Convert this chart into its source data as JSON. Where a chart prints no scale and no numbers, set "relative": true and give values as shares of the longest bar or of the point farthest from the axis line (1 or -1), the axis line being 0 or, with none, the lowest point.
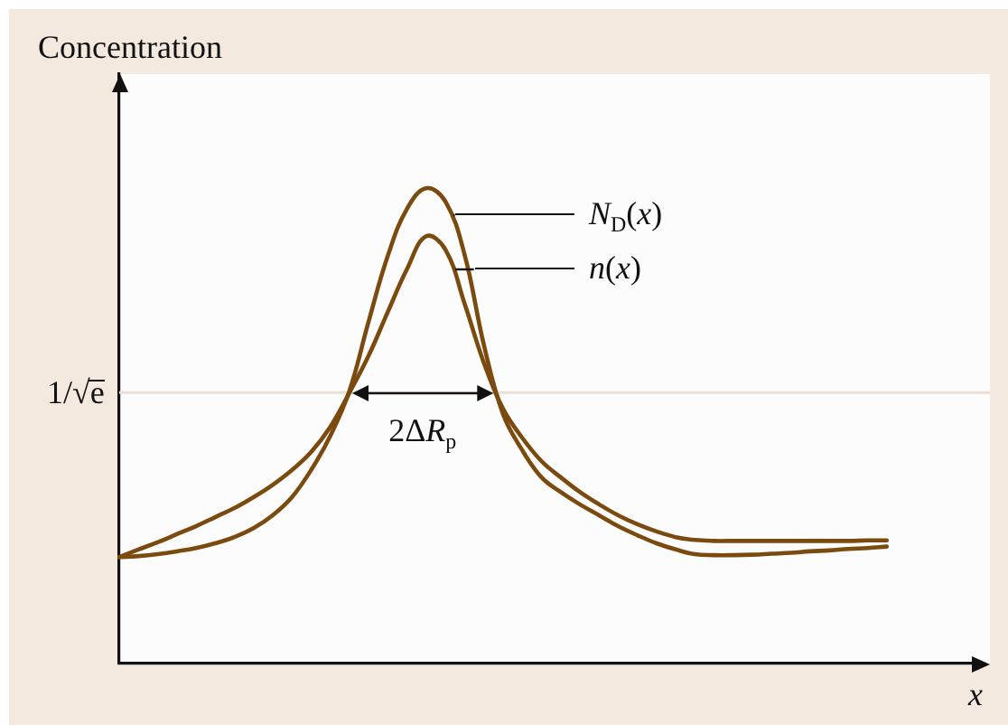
{
  "chart_data": {
    "type": "line",
    "relative": true,
    "ylabel": "Concentration",
    "xlabel": "x",
    "legend": false,
    "marker": "none",
    "line_style": "solid",
    "categories": [
      null,
      null,
      null,
      null,
      null,
      null,
      null,
      null,
      null,
      null,
      null,
      null,
      null,
      null,
      null,
      null,
      null,
      null,
      null,
      null,
      null,
      null,
      null,
      null,
      null,
      null,
      null,
      null,
      null,
      null,
      null,
      null,
      null,
      null,
      null,
      null,
      null,
      null,
      null,
      null,
      null,
      null,
      null,
      null,
      null,
      null
    ],
    "series": [
      {
        "name": "N$_{D}$(x)",
        "color": "#7a4a0e",
        "values": [
          0.224,
          0.226,
          0.23,
          0.236,
          0.243,
          0.253,
          0.266,
          0.285,
          0.312,
          0.35,
          0.407,
          0.479,
          0.574,
          0.72,
          0.858,
          0.957,
          1.0,
          0.972,
          0.86,
          0.671,
          0.525,
          0.449,
          0.392,
          0.361,
          0.335,
          0.312,
          0.289,
          0.27,
          0.253,
          0.24,
          0.23,
          0.228,
          0.228,
          0.229,
          0.231,
          0.233,
          0.236,
          0.238,
          0.241,
          0.243,
          0.246,
          null,
          null,
          null,
          null,
          null
        ]
      },
      {
        "name": "n(x)",
        "color": "#7a4a0e",
        "values": [
          0.224,
          0.24,
          0.255,
          0.272,
          0.289,
          0.308,
          0.327,
          0.35,
          0.376,
          0.407,
          0.445,
          0.498,
          0.57,
          0.648,
          0.74,
          0.83,
          0.899,
          0.871,
          0.757,
          0.633,
          0.536,
          0.475,
          0.426,
          0.392,
          0.361,
          0.335,
          0.312,
          0.293,
          0.278,
          0.266,
          0.26,
          0.258,
          0.258,
          0.258,
          0.258,
          0.258,
          0.258,
          0.258,
          0.258,
          0.259,
          0.259,
          null,
          null,
          null,
          null,
          null
        ]
      }
    ],
    "ref_lines": [
      {
        "axis": "y",
        "value": 0.57,
        "label": "1/√e",
        "color": "#eadfd3"
      }
    ],
    "annotations": [
      {
        "text": "2ΔR$_{p}$",
        "y": 0.57
      }
    ]
  }
}
